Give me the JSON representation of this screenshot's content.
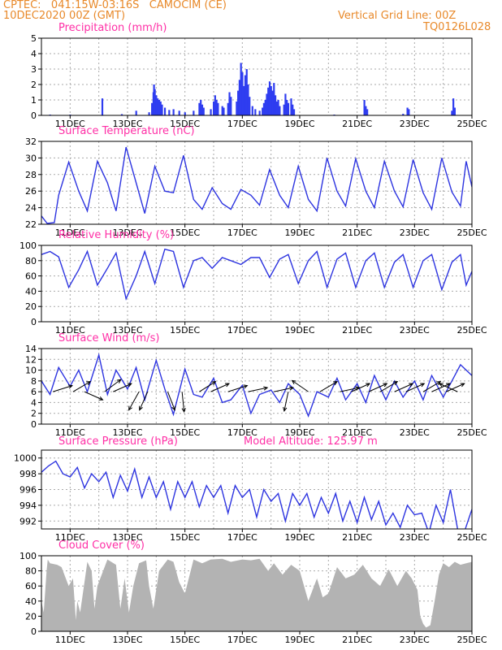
{
  "header": {
    "line1": "CPTEC:   041:15W-03:16S   CAMOCIM (CE)",
    "line2": "10DEC2020 00Z (GMT)",
    "grid_note": "Vertical Grid Line: 00Z",
    "code": "TQ0126L028"
  },
  "colors": {
    "header": "#e8892a",
    "title": "#ff2fa6",
    "line": "#2d34e0",
    "bar": "#2f3df0",
    "cloud": "#b3b3b3",
    "grid": "#aaaaaa",
    "arrow": "#000000"
  },
  "chart_data": [
    {
      "type": "bar",
      "title": "Precipitation (mm/h)",
      "ylim": [
        0,
        5
      ],
      "yticks": [
        0,
        1,
        2,
        3,
        4,
        5
      ],
      "xlim": [
        0,
        15
      ],
      "x_tick_labels": [
        "11DEC",
        "13DEC",
        "15DEC",
        "17DEC",
        "19DEC",
        "21DEC",
        "23DEC",
        "25DEC"
      ],
      "x_tick_days": [
        1,
        3,
        5,
        7,
        9,
        11,
        13,
        15
      ],
      "grid": true,
      "bars": [
        [
          0.3,
          0.05
        ],
        [
          1.0,
          0.05
        ],
        [
          2.12,
          1.1
        ],
        [
          2.8,
          0.08
        ],
        [
          3.3,
          0.3
        ],
        [
          3.75,
          0.2
        ],
        [
          3.85,
          0.8
        ],
        [
          3.9,
          1.5
        ],
        [
          3.92,
          2.0
        ],
        [
          3.95,
          1.7
        ],
        [
          4.0,
          1.3
        ],
        [
          4.05,
          1.1
        ],
        [
          4.1,
          1.0
        ],
        [
          4.15,
          0.9
        ],
        [
          4.2,
          0.7
        ],
        [
          4.3,
          0.5
        ],
        [
          4.45,
          0.35
        ],
        [
          4.6,
          0.4
        ],
        [
          4.8,
          0.3
        ],
        [
          5.0,
          0.2
        ],
        [
          5.3,
          0.3
        ],
        [
          5.5,
          0.8
        ],
        [
          5.55,
          1.0
        ],
        [
          5.6,
          0.7
        ],
        [
          5.65,
          0.5
        ],
        [
          5.9,
          0.4
        ],
        [
          6.0,
          0.9
        ],
        [
          6.05,
          1.3
        ],
        [
          6.1,
          1.0
        ],
        [
          6.15,
          0.8
        ],
        [
          6.3,
          0.6
        ],
        [
          6.35,
          0.5
        ],
        [
          6.5,
          0.8
        ],
        [
          6.55,
          1.5
        ],
        [
          6.6,
          1.2
        ],
        [
          6.8,
          0.9
        ],
        [
          6.85,
          1.6
        ],
        [
          6.9,
          2.3
        ],
        [
          6.95,
          3.4
        ],
        [
          7.0,
          2.8
        ],
        [
          7.05,
          1.9
        ],
        [
          7.1,
          2.6
        ],
        [
          7.15,
          3.0
        ],
        [
          7.2,
          2.0
        ],
        [
          7.25,
          1.2
        ],
        [
          7.35,
          0.6
        ],
        [
          7.45,
          0.4
        ],
        [
          7.6,
          0.3
        ],
        [
          7.7,
          0.5
        ],
        [
          7.75,
          0.8
        ],
        [
          7.8,
          1.0
        ],
        [
          7.85,
          1.4
        ],
        [
          7.9,
          1.8
        ],
        [
          7.95,
          2.2
        ],
        [
          8.0,
          1.9
        ],
        [
          8.05,
          1.6
        ],
        [
          8.1,
          2.1
        ],
        [
          8.15,
          1.3
        ],
        [
          8.2,
          0.9
        ],
        [
          8.25,
          1.0
        ],
        [
          8.3,
          0.6
        ],
        [
          8.45,
          0.7
        ],
        [
          8.5,
          1.4
        ],
        [
          8.55,
          1.0
        ],
        [
          8.6,
          0.8
        ],
        [
          8.7,
          1.1
        ],
        [
          8.75,
          0.7
        ],
        [
          8.8,
          0.4
        ],
        [
          10.2,
          0.05
        ],
        [
          11.25,
          1.0
        ],
        [
          11.3,
          0.6
        ],
        [
          11.35,
          0.4
        ],
        [
          12.6,
          0.1
        ],
        [
          12.75,
          0.5
        ],
        [
          12.8,
          0.4
        ],
        [
          14.3,
          0.3
        ],
        [
          14.35,
          1.1
        ],
        [
          14.4,
          0.5
        ]
      ]
    },
    {
      "type": "line",
      "title": "Surface Temperature (nC)",
      "ylim": [
        22,
        32
      ],
      "yticks": [
        22,
        24,
        26,
        28,
        30,
        32
      ],
      "xlim": [
        0,
        15
      ],
      "x_tick_labels": [
        "11DEC",
        "13DEC",
        "15DEC",
        "17DEC",
        "19DEC",
        "21DEC",
        "23DEC",
        "25DEC"
      ],
      "x_tick_days": [
        1,
        3,
        5,
        7,
        9,
        11,
        13,
        15
      ],
      "grid": true,
      "x": [
        0.0,
        0.2,
        0.45,
        0.6,
        0.95,
        1.3,
        1.6,
        1.95,
        2.3,
        2.6,
        2.95,
        3.3,
        3.6,
        3.95,
        4.3,
        4.6,
        4.95,
        5.3,
        5.6,
        5.95,
        6.3,
        6.6,
        6.95,
        7.3,
        7.6,
        7.95,
        8.3,
        8.6,
        8.95,
        9.3,
        9.6,
        9.95,
        10.3,
        10.6,
        10.95,
        11.3,
        11.6,
        11.95,
        12.3,
        12.6,
        12.95,
        13.3,
        13.6,
        13.95,
        14.3,
        14.6,
        14.8,
        15.0
      ],
      "y": [
        23.0,
        22.1,
        22.2,
        25.5,
        29.5,
        26.0,
        23.6,
        29.6,
        27.0,
        23.6,
        31.3,
        27.0,
        23.3,
        29.0,
        26.0,
        25.8,
        30.3,
        25.0,
        23.8,
        26.4,
        24.5,
        23.8,
        26.2,
        25.5,
        24.3,
        28.6,
        25.5,
        24.0,
        29.0,
        25.0,
        23.6,
        30.0,
        26.0,
        24.2,
        29.9,
        26.0,
        24.0,
        29.6,
        26.0,
        24.1,
        29.8,
        25.8,
        23.8,
        30.0,
        25.9,
        24.2,
        29.6,
        26.5
      ]
    },
    {
      "type": "line",
      "title": "Relative Humidity (%)",
      "ylim": [
        0,
        100
      ],
      "yticks": [
        0,
        20,
        40,
        60,
        80,
        100
      ],
      "xlim": [
        0,
        15
      ],
      "x_tick_labels": [
        "11DEC",
        "13DEC",
        "15DEC",
        "17DEC",
        "19DEC",
        "21DEC",
        "23DEC",
        "25DEC"
      ],
      "x_tick_days": [
        1,
        3,
        5,
        7,
        9,
        11,
        13,
        15
      ],
      "grid": true,
      "x": [
        0.0,
        0.3,
        0.6,
        0.95,
        1.3,
        1.6,
        1.95,
        2.3,
        2.6,
        2.95,
        3.3,
        3.6,
        3.95,
        4.3,
        4.6,
        4.95,
        5.3,
        5.6,
        5.95,
        6.3,
        6.6,
        6.95,
        7.3,
        7.6,
        7.95,
        8.3,
        8.6,
        8.95,
        9.3,
        9.6,
        9.95,
        10.3,
        10.6,
        10.95,
        11.3,
        11.6,
        11.95,
        12.3,
        12.6,
        12.95,
        13.3,
        13.6,
        13.95,
        14.3,
        14.6,
        14.8,
        15.0
      ],
      "y": [
        88,
        92,
        85,
        45,
        68,
        92,
        48,
        70,
        90,
        30,
        60,
        92,
        50,
        95,
        92,
        45,
        80,
        84,
        70,
        84,
        80,
        75,
        84,
        84,
        58,
        82,
        88,
        50,
        80,
        92,
        45,
        82,
        90,
        45,
        80,
        90,
        45,
        78,
        88,
        45,
        80,
        88,
        42,
        78,
        88,
        48,
        66
      ]
    },
    {
      "type": "line",
      "title": "Surface Wind (m/s)",
      "ylim": [
        0,
        14
      ],
      "yticks": [
        0,
        2,
        4,
        6,
        8,
        10,
        12,
        14
      ],
      "xlim": [
        0,
        15
      ],
      "x_tick_labels": [
        "11DEC",
        "13DEC",
        "15DEC",
        "17DEC",
        "19DEC",
        "21DEC",
        "23DEC",
        "25DEC"
      ],
      "x_tick_days": [
        1,
        3,
        5,
        7,
        9,
        11,
        13,
        15
      ],
      "grid": true,
      "x": [
        0.0,
        0.3,
        0.6,
        1.0,
        1.3,
        1.6,
        2.0,
        2.3,
        2.6,
        3.0,
        3.3,
        3.6,
        4.0,
        4.3,
        4.6,
        5.0,
        5.3,
        5.6,
        6.0,
        6.3,
        6.6,
        7.0,
        7.3,
        7.6,
        8.0,
        8.3,
        8.6,
        9.0,
        9.3,
        9.6,
        10.0,
        10.3,
        10.6,
        11.0,
        11.3,
        11.6,
        12.0,
        12.3,
        12.6,
        13.0,
        13.3,
        13.6,
        14.0,
        14.3,
        14.6,
        15.0
      ],
      "y": [
        8.0,
        5.5,
        10.5,
        7.0,
        10.0,
        6.0,
        12.8,
        5.5,
        10.0,
        6.5,
        10.5,
        4.5,
        11.8,
        6.5,
        1.8,
        10.2,
        5.5,
        5.0,
        8.5,
        4.0,
        4.5,
        7.2,
        2.0,
        5.5,
        6.3,
        4.0,
        7.5,
        5.5,
        1.5,
        6.0,
        5.0,
        8.5,
        4.5,
        7.5,
        4.0,
        9.0,
        4.5,
        8.0,
        5.0,
        8.0,
        4.5,
        9.0,
        5.0,
        8.0,
        11.0,
        9.0
      ],
      "arrows_x": [
        0.4,
        1.1,
        1.5,
        2.2,
        2.5,
        3.4,
        3.7,
        4.4,
        4.9,
        5.5,
        5.9,
        6.5,
        7.2,
        8.1,
        8.6,
        9.3,
        9.7,
        10.4,
        10.8,
        11.4,
        11.8,
        12.3,
        12.7,
        13.3,
        13.6,
        14.1,
        14.5
      ],
      "arrows_u": [
        0.95,
        0.85,
        0.9,
        0.8,
        0.9,
        -0.5,
        -0.4,
        0.35,
        0.1,
        0.8,
        0.9,
        0.95,
        0.95,
        0.95,
        -0.2,
        -0.8,
        0.85,
        0.95,
        0.9,
        0.9,
        0.85,
        0.9,
        0.9,
        0.85,
        0.9,
        0.9,
        -0.9
      ],
      "arrows_v": [
        0.3,
        0.5,
        -0.4,
        0.6,
        0.4,
        -0.9,
        -0.9,
        -0.9,
        -0.99,
        0.5,
        0.4,
        0.3,
        0.2,
        0.2,
        -0.95,
        0.55,
        0.5,
        0.2,
        0.4,
        0.4,
        0.5,
        0.4,
        0.4,
        0.5,
        0.4,
        0.4,
        0.4
      ]
    },
    {
      "type": "line",
      "title": "Surface Pressure (hPa)",
      "annotation": "Model Altitude: 125.97 m",
      "ylim": [
        991,
        1001
      ],
      "yticks": [
        992,
        994,
        996,
        998,
        1000
      ],
      "xlim": [
        0,
        15
      ],
      "x_tick_labels": [
        "11DEC",
        "13DEC",
        "15DEC",
        "17DEC",
        "19DEC",
        "21DEC",
        "23DEC",
        "25DEC"
      ],
      "x_tick_days": [
        1,
        3,
        5,
        7,
        9,
        11,
        13,
        15
      ],
      "grid": true,
      "x": [
        0.0,
        0.25,
        0.5,
        0.75,
        1.0,
        1.25,
        1.5,
        1.75,
        2.0,
        2.25,
        2.5,
        2.75,
        3.0,
        3.25,
        3.5,
        3.75,
        4.0,
        4.25,
        4.5,
        4.75,
        5.0,
        5.25,
        5.5,
        5.75,
        6.0,
        6.25,
        6.5,
        6.75,
        7.0,
        7.25,
        7.5,
        7.75,
        8.0,
        8.25,
        8.5,
        8.75,
        9.0,
        9.25,
        9.5,
        9.75,
        10.0,
        10.25,
        10.5,
        10.75,
        11.0,
        11.25,
        11.5,
        11.75,
        12.0,
        12.25,
        12.5,
        12.75,
        13.0,
        13.25,
        13.5,
        13.75,
        14.0,
        14.25,
        14.5,
        14.75,
        15.0
      ],
      "y": [
        998.2,
        999.0,
        999.6,
        998.0,
        997.6,
        998.8,
        996.2,
        998.0,
        997.0,
        998.2,
        995.0,
        997.8,
        995.8,
        998.6,
        995.0,
        997.6,
        995.0,
        997.0,
        993.5,
        997.0,
        995.0,
        997.0,
        993.8,
        996.5,
        995.0,
        996.5,
        993.0,
        996.5,
        995.0,
        996.0,
        992.5,
        996.0,
        994.5,
        995.5,
        992.0,
        995.5,
        994.0,
        995.5,
        992.5,
        995.0,
        993.0,
        995.5,
        992.0,
        994.5,
        991.8,
        995.0,
        992.2,
        994.5,
        991.5,
        993.0,
        991.2,
        994.0,
        992.8,
        993.0,
        990.5,
        994.0,
        991.8,
        996.0,
        991.0,
        990.8,
        993.5
      ]
    },
    {
      "type": "area",
      "title": "Cloud Cover (%)",
      "ylim": [
        0,
        100
      ],
      "yticks": [
        0,
        20,
        40,
        60,
        80,
        100
      ],
      "xlim": [
        0,
        15
      ],
      "x_tick_labels": [
        "11DEC",
        "13DEC",
        "15DEC",
        "17DEC",
        "19DEC",
        "21DEC",
        "23DEC",
        "25DEC"
      ],
      "x_tick_days": [
        1,
        3,
        5,
        7,
        9,
        11,
        13,
        15
      ],
      "grid": true,
      "x": [
        0.0,
        0.08,
        0.18,
        0.22,
        0.3,
        0.55,
        0.7,
        0.95,
        1.1,
        1.2,
        1.25,
        1.35,
        1.6,
        1.75,
        1.85,
        1.95,
        2.1,
        2.3,
        2.6,
        2.75,
        2.9,
        3.05,
        3.2,
        3.4,
        3.65,
        3.75,
        3.9,
        4.1,
        4.4,
        4.6,
        4.8,
        5.0,
        5.3,
        5.6,
        5.9,
        6.3,
        6.6,
        7.0,
        7.3,
        7.6,
        7.9,
        8.1,
        8.4,
        8.7,
        9.0,
        9.3,
        9.6,
        9.8,
        10.0,
        10.3,
        10.6,
        10.9,
        11.2,
        11.5,
        11.8,
        12.1,
        12.4,
        12.7,
        12.9,
        13.1,
        13.2,
        13.3,
        13.4,
        13.55,
        13.7,
        13.85,
        14.0,
        14.2,
        14.4,
        14.6,
        14.8,
        15.0
      ],
      "y": [
        40,
        25,
        80,
        95,
        90,
        88,
        85,
        60,
        70,
        15,
        40,
        25,
        92,
        80,
        30,
        60,
        75,
        95,
        88,
        30,
        70,
        25,
        60,
        90,
        94,
        60,
        30,
        80,
        95,
        92,
        65,
        50,
        95,
        90,
        95,
        96,
        92,
        95,
        94,
        96,
        80,
        90,
        75,
        88,
        80,
        40,
        70,
        45,
        50,
        85,
        70,
        75,
        88,
        70,
        60,
        82,
        60,
        80,
        70,
        55,
        20,
        10,
        5,
        8,
        40,
        75,
        90,
        85,
        92,
        88,
        90,
        92
      ]
    }
  ]
}
